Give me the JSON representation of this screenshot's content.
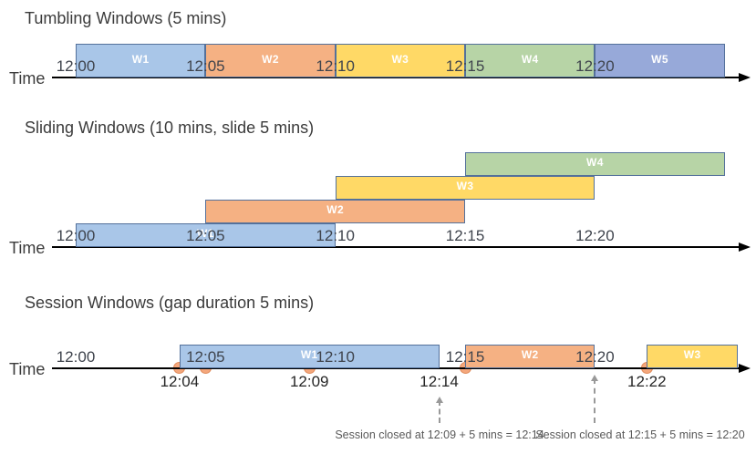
{
  "diagram": {
    "background": "#FFFFFF",
    "colors": {
      "axis": "#000000",
      "title_text": "#3B3B3B",
      "tick_text": "#3F444D",
      "event_label_text": "#262626",
      "window_label_text": "#FFFFFF",
      "annotation_text": "#595959",
      "annotation_arrow": "#999999",
      "event_dot_fill": "#F4A77C",
      "event_dot_border": "#E08C5C"
    },
    "palette": {
      "blue_light": {
        "fill": "#A9C6E8",
        "border": "#54719B"
      },
      "blue_medium": {
        "fill": "#97A9D9",
        "border": "#54719B"
      },
      "orange": {
        "fill": "#F5B183",
        "border": "#54719B"
      },
      "yellow": {
        "fill": "#FFD966",
        "border": "#54719B"
      },
      "green": {
        "fill": "#B7D4A6",
        "border": "#54719B"
      }
    },
    "sections": [
      {
        "id": "tumbling",
        "title": "Tumbling Windows (5 mins)",
        "time_label": "Time",
        "ticks": [
          {
            "label": "12:00",
            "min": 0
          },
          {
            "label": "12:05",
            "min": 5
          },
          {
            "label": "12:10",
            "min": 10
          },
          {
            "label": "12:15",
            "min": 15
          },
          {
            "label": "12:20",
            "min": 20
          }
        ],
        "windows": [
          {
            "label": "W1",
            "start_min": 0,
            "end_min": 5,
            "color": "blue_light",
            "row": 0
          },
          {
            "label": "W2",
            "start_min": 5,
            "end_min": 10,
            "color": "orange",
            "row": 0
          },
          {
            "label": "W3",
            "start_min": 10,
            "end_min": 15,
            "color": "yellow",
            "row": 0
          },
          {
            "label": "W4",
            "start_min": 15,
            "end_min": 20,
            "color": "green",
            "row": 0
          },
          {
            "label": "W5",
            "start_min": 20,
            "end_min": 25,
            "color": "blue_medium",
            "row": 0
          }
        ]
      },
      {
        "id": "sliding",
        "title": "Sliding Windows (10 mins, slide 5 mins)",
        "time_label": "Time",
        "ticks": [
          {
            "label": "12:00",
            "min": 0
          },
          {
            "label": "12:05",
            "min": 5
          },
          {
            "label": "12:10",
            "min": 10
          },
          {
            "label": "12:15",
            "min": 15
          },
          {
            "label": "12:20",
            "min": 20
          }
        ],
        "windows": [
          {
            "label": "W1",
            "start_min": 0,
            "end_min": 10,
            "color": "blue_light",
            "row": 0
          },
          {
            "label": "W2",
            "start_min": 5,
            "end_min": 15,
            "color": "orange",
            "row": 1
          },
          {
            "label": "W3",
            "start_min": 10,
            "end_min": 20,
            "color": "yellow",
            "row": 2
          },
          {
            "label": "W4",
            "start_min": 15,
            "end_min": 25,
            "color": "green",
            "row": 3
          }
        ]
      },
      {
        "id": "session",
        "title": "Session Windows (gap duration 5 mins)",
        "time_label": "Time",
        "ticks": [
          {
            "label": "12:00",
            "min": 0
          },
          {
            "label": "12:05",
            "min": 5
          },
          {
            "label": "12:10",
            "min": 10
          },
          {
            "label": "12:15",
            "min": 15
          },
          {
            "label": "12:20",
            "min": 20
          }
        ],
        "windows": [
          {
            "label": "W1",
            "start_min": 4,
            "end_min": 14,
            "color": "blue_light",
            "row": 0
          },
          {
            "label": "W2",
            "start_min": 15,
            "end_min": 20,
            "color": "orange",
            "row": 0
          },
          {
            "label": "W3",
            "start_min": 22,
            "end_min": 25.5,
            "color": "yellow",
            "row": 0
          }
        ],
        "events": [
          {
            "min": 4
          },
          {
            "min": 5
          },
          {
            "min": 9
          },
          {
            "min": 15
          },
          {
            "min": 22
          }
        ],
        "event_labels": [
          {
            "label": "12:04",
            "min": 4
          },
          {
            "label": "12:09",
            "min": 9
          },
          {
            "label": "12:14",
            "min": 14
          },
          {
            "label": "12:22",
            "min": 22
          }
        ],
        "annotations": [
          {
            "text": "Session closed at 12:09 + 5 mins = 12:14",
            "arrow_min": 14
          },
          {
            "text": "Session closed at 12:15 + 5 mins = 12:20",
            "arrow_min": 20
          }
        ]
      }
    ]
  }
}
